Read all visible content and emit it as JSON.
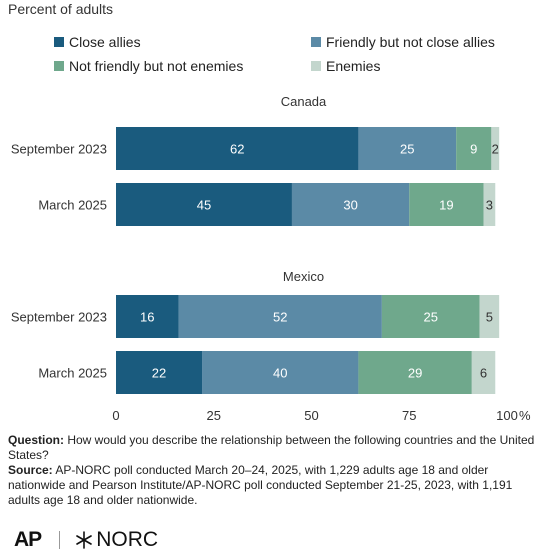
{
  "subtitle": "Percent of adults",
  "legend": [
    {
      "label": "Close allies",
      "color": "#1a5b7e"
    },
    {
      "label": "Friendly but not close allies",
      "color": "#5b8aa6"
    },
    {
      "label": "Not friendly but not enemies",
      "color": "#6fa88c"
    },
    {
      "label": "Enemies",
      "color": "#c3d6cd"
    }
  ],
  "chart_data": {
    "type": "bar",
    "orientation": "horizontal",
    "stacked": true,
    "groups": [
      {
        "name": "Canada",
        "rows": [
          {
            "label": "September 2023",
            "values": [
              62,
              25,
              9,
              2
            ]
          },
          {
            "label": "March 2025",
            "values": [
              45,
              30,
              19,
              3
            ]
          }
        ]
      },
      {
        "name": "Mexico",
        "rows": [
          {
            "label": "September 2023",
            "values": [
              16,
              52,
              25,
              5
            ]
          },
          {
            "label": "March 2025",
            "values": [
              22,
              40,
              29,
              6
            ]
          }
        ]
      }
    ],
    "series": [
      "Close allies",
      "Friendly but not close allies",
      "Not friendly but not enemies",
      "Enemies"
    ],
    "xlim": [
      0,
      100
    ],
    "xticks": [
      0,
      25,
      50,
      75,
      100
    ],
    "x_unit": "%",
    "grid": false
  },
  "footer": {
    "question_label": "Question:",
    "question_text": "How would you describe the relationship between the following countries and the United States?",
    "source_label": "Source:",
    "source_text": "AP-NORC poll conducted March 20–24, 2025, with 1,229 adults age 18 and older nationwide and Pearson Institute/AP-NORC poll conducted September 21-25, 2023, with 1,191 adults age 18 and older nationwide."
  },
  "logos": {
    "ap": "AP",
    "norc": "NORC"
  }
}
